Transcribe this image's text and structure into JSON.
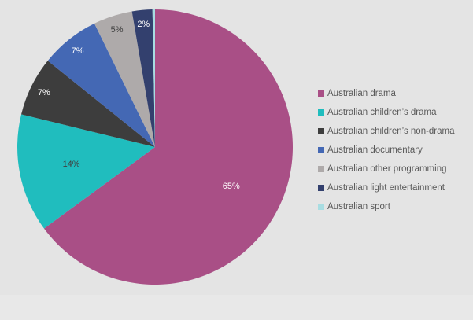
{
  "chart_data": {
    "type": "pie",
    "title": "",
    "start_angle_deg": 0,
    "direction": "clockwise",
    "legend_position": "right",
    "slices": [
      {
        "name": "Australian drama",
        "value": 65.3,
        "label": "65%",
        "color": "#a94f86",
        "label_color": "#ffffff"
      },
      {
        "name": "Australian children’s drama",
        "value": 14,
        "label": "14%",
        "color": "#20bdbe",
        "label_color": "#404040"
      },
      {
        "name": "Australian children’s non-drama",
        "value": 7,
        "label": "7%",
        "color": "#3d3d3d",
        "label_color": "#ffffff"
      },
      {
        "name": "Australian documentary",
        "value": 7,
        "label": "7%",
        "color": "#4468b4",
        "label_color": "#ffffff"
      },
      {
        "name": "Australian other programming",
        "value": 4.6,
        "label": "5%",
        "color": "#aeaaaa",
        "label_color": "#404040"
      },
      {
        "name": "Australian light entertainment",
        "value": 2.4,
        "label": "2%",
        "color": "#33406e",
        "label_color": "#ffffff"
      },
      {
        "name": "Australian sport",
        "value": 0.3,
        "label": "",
        "color": "#a8dde2",
        "label_color": "#404040"
      }
    ]
  }
}
